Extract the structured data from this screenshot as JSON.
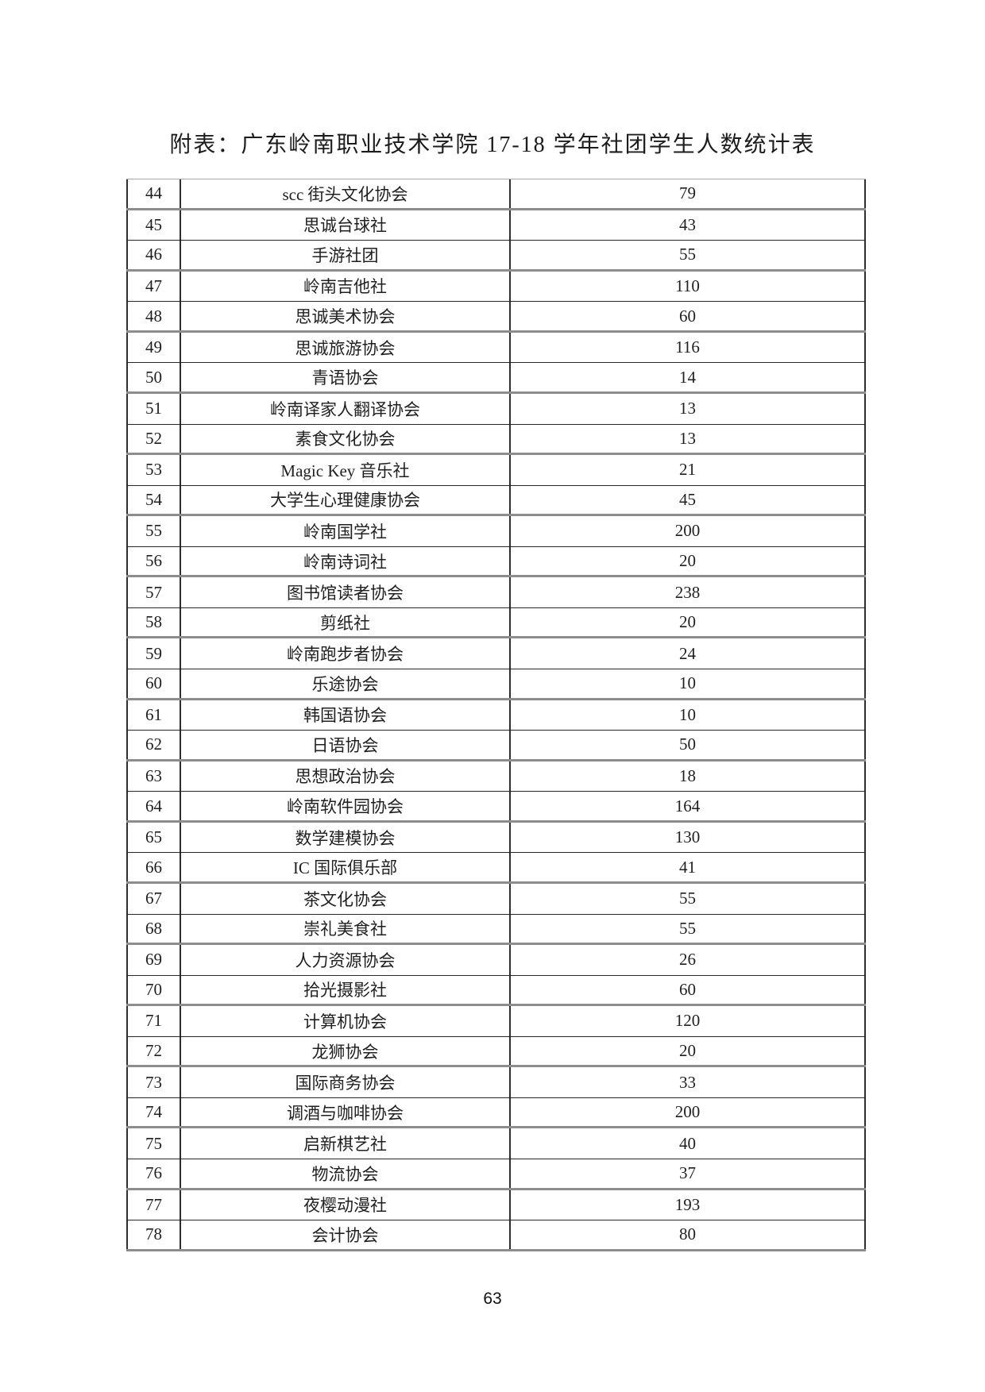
{
  "page": {
    "title": "附表：广东岭南职业技术学院 17-18 学年社团学生人数统计表",
    "page_number": "63"
  },
  "table": {
    "rows": [
      {
        "no": "44",
        "name": "scc 街头文化协会",
        "count": "79"
      },
      {
        "no": "45",
        "name": "思诚台球社",
        "count": "43"
      },
      {
        "no": "46",
        "name": "手游社团",
        "count": "55"
      },
      {
        "no": "47",
        "name": "岭南吉他社",
        "count": "110"
      },
      {
        "no": "48",
        "name": "思诚美术协会",
        "count": "60"
      },
      {
        "no": "49",
        "name": "思诚旅游协会",
        "count": "116"
      },
      {
        "no": "50",
        "name": "青语协会",
        "count": "14"
      },
      {
        "no": "51",
        "name": "岭南译家人翻译协会",
        "count": "13"
      },
      {
        "no": "52",
        "name": "素食文化协会",
        "count": "13"
      },
      {
        "no": "53",
        "name": "Magic Key 音乐社",
        "count": "21"
      },
      {
        "no": "54",
        "name": "大学生心理健康协会",
        "count": "45"
      },
      {
        "no": "55",
        "name": "岭南国学社",
        "count": "200"
      },
      {
        "no": "56",
        "name": "岭南诗词社",
        "count": "20"
      },
      {
        "no": "57",
        "name": "图书馆读者协会",
        "count": "238"
      },
      {
        "no": "58",
        "name": "剪纸社",
        "count": "20"
      },
      {
        "no": "59",
        "name": "岭南跑步者协会",
        "count": "24"
      },
      {
        "no": "60",
        "name": "乐途协会",
        "count": "10"
      },
      {
        "no": "61",
        "name": "韩国语协会",
        "count": "10"
      },
      {
        "no": "62",
        "name": "日语协会",
        "count": "50"
      },
      {
        "no": "63",
        "name": "思想政治协会",
        "count": "18"
      },
      {
        "no": "64",
        "name": "岭南软件园协会",
        "count": "164"
      },
      {
        "no": "65",
        "name": "数学建模协会",
        "count": "130"
      },
      {
        "no": "66",
        "name": "IC 国际俱乐部",
        "count": "41"
      },
      {
        "no": "67",
        "name": "茶文化协会",
        "count": "55"
      },
      {
        "no": "68",
        "name": "崇礼美食社",
        "count": "55"
      },
      {
        "no": "69",
        "name": "人力资源协会",
        "count": "26"
      },
      {
        "no": "70",
        "name": "拾光摄影社",
        "count": "60"
      },
      {
        "no": "71",
        "name": "计算机协会",
        "count": "120"
      },
      {
        "no": "72",
        "name": "龙狮协会",
        "count": "20"
      },
      {
        "no": "73",
        "name": "国际商务协会",
        "count": "33"
      },
      {
        "no": "74",
        "name": "调酒与咖啡协会",
        "count": "200"
      },
      {
        "no": "75",
        "name": "启新棋艺社",
        "count": "40"
      },
      {
        "no": "76",
        "name": "物流协会",
        "count": "37"
      },
      {
        "no": "77",
        "name": "夜樱动漫社",
        "count": "193"
      },
      {
        "no": "78",
        "name": "会计协会",
        "count": "80"
      }
    ]
  }
}
